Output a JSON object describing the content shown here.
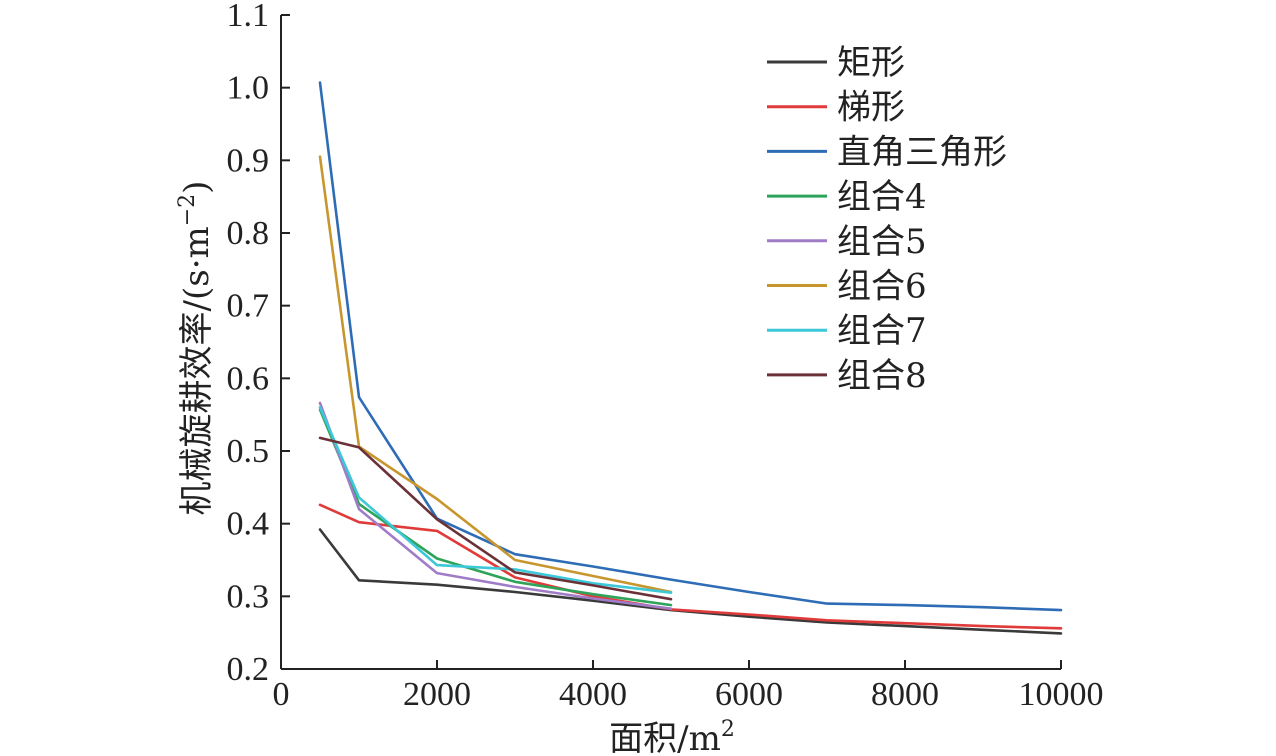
{
  "chart_data": {
    "type": "line",
    "xlabel": "面积/m",
    "xlabel_sup": "2",
    "ylabel": "机械旋耕效率/(s·m",
    "ylabel_sup": "−2",
    "ylabel_end": ")",
    "xlim": [
      0,
      10000
    ],
    "ylim": [
      0.2,
      1.1
    ],
    "x_ticks": [
      0,
      2000,
      4000,
      6000,
      8000,
      10000
    ],
    "y_ticks": [
      0.2,
      0.3,
      0.4,
      0.5,
      0.6,
      0.7,
      0.8,
      0.9,
      1.0,
      1.1
    ],
    "grid": false,
    "legend_position": "top-right",
    "series": [
      {
        "name": "矩形",
        "color": "#3a3a3a",
        "x": [
          500,
          1000,
          2000,
          3000,
          4000,
          5000,
          6000,
          7000,
          8000,
          9000,
          10000
        ],
        "y": [
          0.392,
          0.322,
          0.316,
          0.306,
          0.294,
          0.281,
          0.272,
          0.264,
          0.259,
          0.254,
          0.249
        ]
      },
      {
        "name": "梯形",
        "color": "#e03a3a",
        "x": [
          500,
          1000,
          2000,
          3000,
          4000,
          5000,
          6000,
          7000,
          8000,
          9000,
          10000
        ],
        "y": [
          0.426,
          0.402,
          0.39,
          0.326,
          0.3,
          0.282,
          0.275,
          0.267,
          0.263,
          0.259,
          0.256
        ]
      },
      {
        "name": "直角三角形",
        "color": "#2e6db5",
        "x": [
          500,
          1000,
          2000,
          3000,
          4000,
          5000,
          6000,
          7000,
          8000,
          9000,
          10000
        ],
        "y": [
          1.007,
          0.574,
          0.407,
          0.358,
          0.341,
          0.323,
          0.306,
          0.29,
          0.288,
          0.285,
          0.281
        ]
      },
      {
        "name": "组合4",
        "color": "#2ea45a",
        "x": [
          500,
          1000,
          2000,
          3000,
          4000,
          5000
        ],
        "y": [
          0.557,
          0.427,
          0.352,
          0.32,
          0.303,
          0.288
        ]
      },
      {
        "name": "组合5",
        "color": "#a07cc8",
        "x": [
          500,
          1000,
          2000,
          3000,
          4000,
          5000
        ],
        "y": [
          0.566,
          0.42,
          0.332,
          0.313,
          0.297,
          0.283
        ]
      },
      {
        "name": "组合6",
        "color": "#c8962e",
        "x": [
          500,
          1000,
          2000,
          3000,
          4000,
          5000
        ],
        "y": [
          0.905,
          0.506,
          0.434,
          0.35,
          0.328,
          0.306
        ]
      },
      {
        "name": "组合7",
        "color": "#3cc8d8",
        "x": [
          500,
          1000,
          2000,
          3000,
          4000,
          5000
        ],
        "y": [
          0.56,
          0.436,
          0.343,
          0.337,
          0.318,
          0.305
        ]
      },
      {
        "name": "组合8",
        "color": "#6a3238",
        "x": [
          500,
          1000,
          2000,
          3000,
          4000,
          5000
        ],
        "y": [
          0.518,
          0.505,
          0.406,
          0.333,
          0.315,
          0.296
        ]
      }
    ]
  }
}
